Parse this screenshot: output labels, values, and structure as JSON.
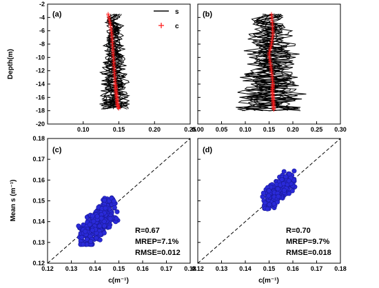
{
  "chart_data": [
    {
      "panel": "(a)",
      "type": "line",
      "xlabel": "",
      "ylabel": "Depth(m)",
      "xlim": [
        0.05,
        0.25
      ],
      "ylim": [
        -20,
        -2
      ],
      "xticks": [
        0.1,
        0.15,
        0.2,
        0.25
      ],
      "xtick_labels": [
        "0.10",
        "0.15",
        "0.20",
        "0.25"
      ],
      "yticks": [
        -20,
        -18,
        -16,
        -14,
        -12,
        -10,
        -8,
        -6,
        -4,
        -2
      ],
      "ytick_labels": [
        "-20",
        "-18",
        "-16",
        "-14",
        "-12",
        "-10",
        "-8",
        "-6",
        "-4",
        "-2"
      ],
      "legend": {
        "position": "top-right",
        "entries": [
          {
            "label": "s",
            "color": "#000000",
            "style": "line"
          },
          {
            "label": "c",
            "color": "#ff2020",
            "style": "plus"
          }
        ]
      },
      "series": [
        {
          "name": "s",
          "color": "#000000",
          "depth_range": [
            -17.8,
            -3.5
          ],
          "x_range": [
            0.12,
            0.165
          ],
          "n_profiles": 12
        },
        {
          "name": "c",
          "color": "#ff2020",
          "x": [
            0.135,
            0.138,
            0.14,
            0.141,
            0.142,
            0.143,
            0.144,
            0.145,
            0.146,
            0.147,
            0.148,
            0.15
          ],
          "y": [
            -3.5,
            -5,
            -6.5,
            -8,
            -9.5,
            -11,
            -12.5,
            -14,
            -15,
            -16,
            -17,
            -17.8
          ]
        }
      ]
    },
    {
      "panel": "(b)",
      "type": "line",
      "xlabel": "",
      "ylabel": "",
      "xlim": [
        0.0,
        0.3
      ],
      "ylim": [
        -20,
        -2
      ],
      "xticks": [
        0.0,
        0.05,
        0.1,
        0.15,
        0.2,
        0.25,
        0.3
      ],
      "xtick_labels": [
        "0.00",
        "0.05",
        "0.10",
        "0.15",
        "0.20",
        "0.25",
        "0.30"
      ],
      "series": [
        {
          "name": "s",
          "color": "#000000",
          "depth_range": [
            -18.0,
            -3.5
          ],
          "x_range": [
            0.08,
            0.23
          ],
          "n_profiles": 12
        },
        {
          "name": "c",
          "color": "#ff2020",
          "x": [
            0.155,
            0.157,
            0.158,
            0.155,
            0.15,
            0.153,
            0.156,
            0.158,
            0.157,
            0.158,
            0.159,
            0.16
          ],
          "y": [
            -3.5,
            -5,
            -6.5,
            -8,
            -9.5,
            -11,
            -12.5,
            -14,
            -15,
            -16,
            -17,
            -18
          ]
        }
      ]
    },
    {
      "panel": "(c)",
      "type": "scatter",
      "xlabel": "c(m⁻¹)",
      "ylabel": "Mean s (m⁻¹)",
      "xlim": [
        0.12,
        0.18
      ],
      "ylim": [
        0.12,
        0.18
      ],
      "xticks": [
        0.12,
        0.13,
        0.14,
        0.15,
        0.16,
        0.17,
        0.18
      ],
      "xtick_labels": [
        "0.12",
        "0.13",
        "0.14",
        "0.15",
        "0.16",
        "0.17",
        "0.18"
      ],
      "yticks": [
        0.12,
        0.13,
        0.14,
        0.15,
        0.16,
        0.17,
        0.18
      ],
      "ytick_labels": [
        "0.12",
        "0.13",
        "0.14",
        "0.15",
        "0.16",
        "0.17",
        "0.18"
      ],
      "reference_line": "1:1",
      "cluster": {
        "x_range": [
          0.133,
          0.151
        ],
        "y_range": [
          0.129,
          0.155
        ],
        "center": [
          0.141,
          0.139
        ]
      },
      "stats": [
        "R=0.67",
        "MREP=7.1%",
        "RMSE=0.012"
      ],
      "marker_color": "#2a2ad8"
    },
    {
      "panel": "(d)",
      "type": "scatter",
      "xlabel": "c(m⁻¹)",
      "ylabel": "",
      "xlim": [
        0.12,
        0.18
      ],
      "ylim": [
        0.12,
        0.18
      ],
      "xticks": [
        0.12,
        0.13,
        0.14,
        0.15,
        0.16,
        0.17,
        0.18
      ],
      "xtick_labels": [
        "0.12",
        "0.13",
        "0.14",
        "0.15",
        "0.16",
        "0.17",
        "0.18"
      ],
      "reference_line": "1:1",
      "cluster": {
        "x_range": [
          0.146,
          0.161
        ],
        "y_range": [
          0.146,
          0.166
        ],
        "center": [
          0.154,
          0.155
        ]
      },
      "stats": [
        "R=0.70",
        "MREP=9.7%",
        "RMSE=0.018"
      ],
      "marker_color": "#2a2ad8"
    }
  ]
}
